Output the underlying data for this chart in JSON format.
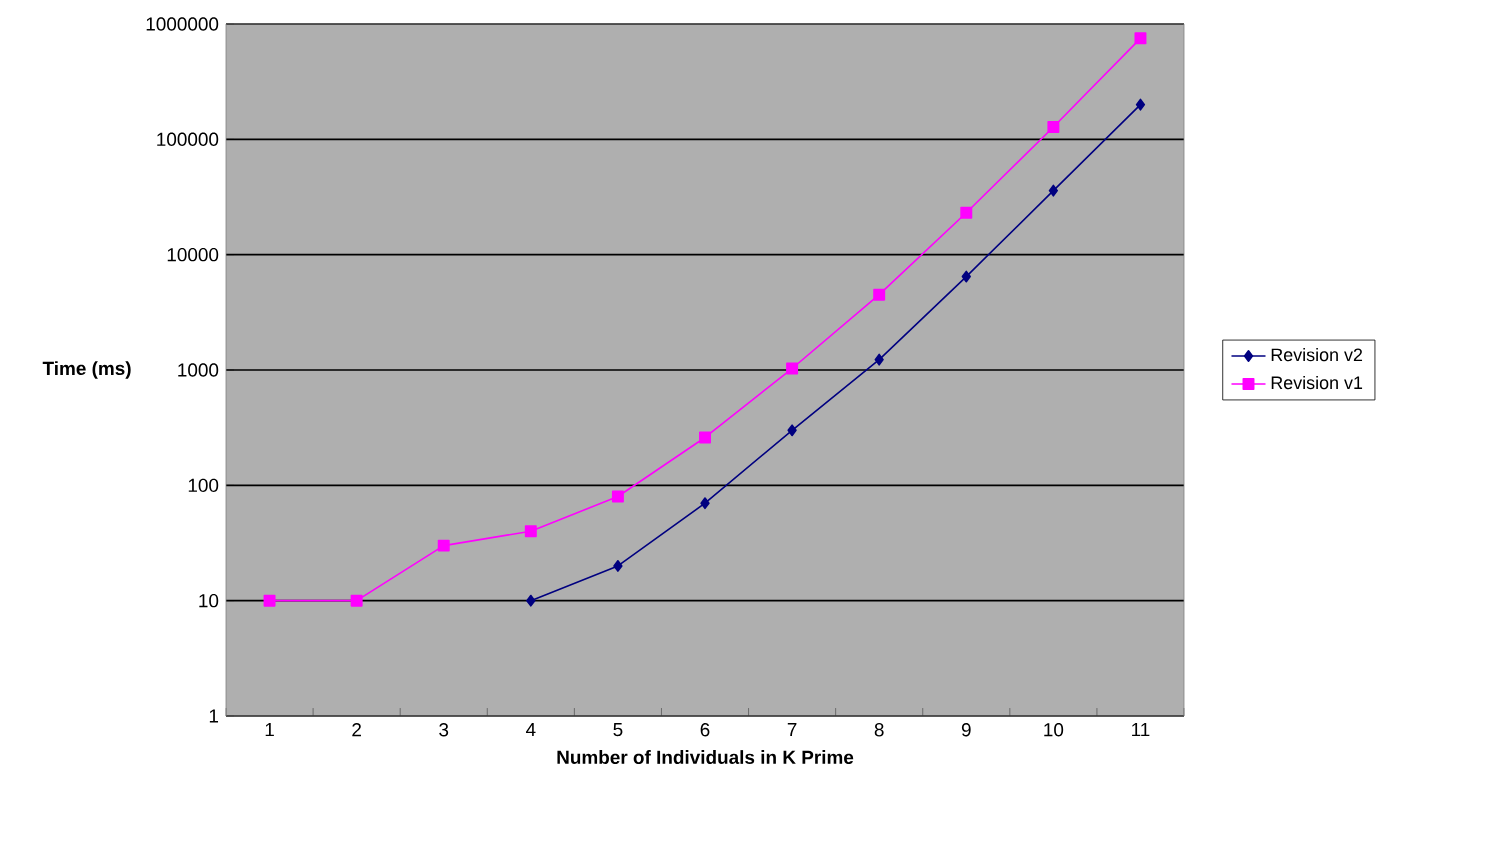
{
  "chart_data": {
    "type": "line",
    "xlabel": "Number of Individuals in K Prime",
    "ylabel": "Time (ms)",
    "categories": [
      "1",
      "2",
      "3",
      "4",
      "5",
      "6",
      "7",
      "8",
      "9",
      "10",
      "11"
    ],
    "series": [
      {
        "name": "Revision v2",
        "color": "#000080",
        "marker": "diamond",
        "values": [
          null,
          null,
          null,
          10,
          20,
          70,
          300,
          1230,
          6460,
          35900,
          200000
        ]
      },
      {
        "name": "Revision v1",
        "color": "#ff00ff",
        "marker": "square",
        "values": [
          10,
          10,
          30,
          40,
          80,
          260,
          1030,
          4500,
          23100,
          128000,
          751000
        ]
      }
    ],
    "log": "y",
    "ylim": [
      1,
      1000000
    ],
    "yticks": [
      1,
      10,
      100,
      1000,
      10000,
      100000,
      1000000
    ],
    "grid": "y",
    "legend": "right",
    "line_style": "solid"
  }
}
